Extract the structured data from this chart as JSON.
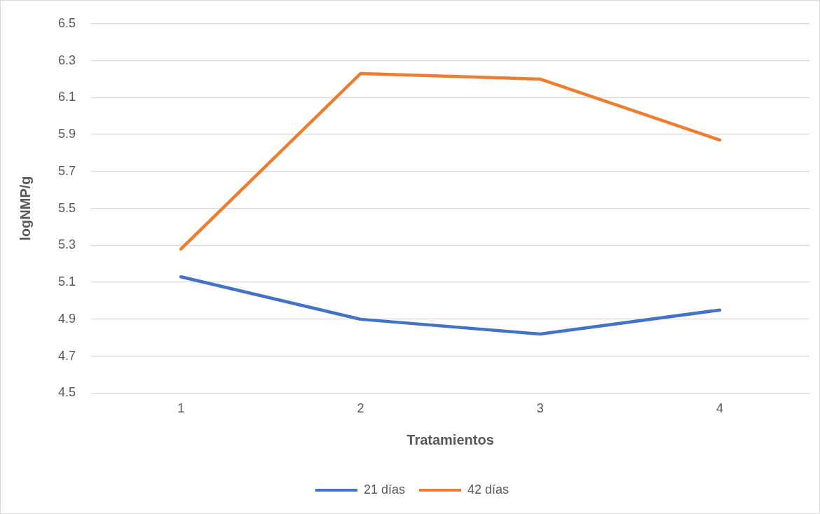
{
  "chart_data": {
    "type": "line",
    "xlabel": "Tratamientos",
    "ylabel": "logNMP/g",
    "categories": [
      "1",
      "2",
      "3",
      "4"
    ],
    "series": [
      {
        "name": "21 días",
        "color": "#4472c4",
        "values": [
          5.13,
          4.9,
          4.82,
          4.95
        ]
      },
      {
        "name": "42 días",
        "color": "#ed7d31",
        "values": [
          5.28,
          6.23,
          6.2,
          5.87
        ]
      }
    ],
    "ylim": [
      4.5,
      6.5
    ],
    "yticks": [
      4.5,
      4.7,
      4.9,
      5.1,
      5.3,
      5.5,
      5.7,
      5.9,
      6.1,
      6.3,
      6.5
    ],
    "grid": "y",
    "legend": "bottom",
    "marker": "none",
    "line_style": "solid"
  }
}
